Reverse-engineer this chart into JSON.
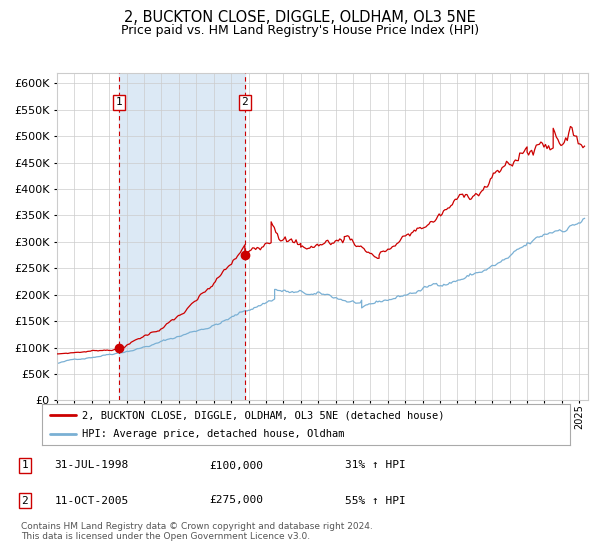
{
  "title": "2, BUCKTON CLOSE, DIGGLE, OLDHAM, OL3 5NE",
  "subtitle": "Price paid vs. HM Land Registry's House Price Index (HPI)",
  "title_fontsize": 10.5,
  "subtitle_fontsize": 9,
  "background_color": "#ffffff",
  "plot_bg_color": "#ffffff",
  "shade_color": "#dce9f5",
  "grid_color": "#cccccc",
  "red_line_color": "#cc0000",
  "blue_line_color": "#7ab0d4",
  "sale1_date": 1998.58,
  "sale1_price": 100000,
  "sale2_date": 2005.79,
  "sale2_price": 275000,
  "sale1_label": "31-JUL-1998",
  "sale2_label": "11-OCT-2005",
  "sale1_pct": "31% ↑ HPI",
  "sale2_pct": "55% ↑ HPI",
  "legend_line1": "2, BUCKTON CLOSE, DIGGLE, OLDHAM, OL3 5NE (detached house)",
  "legend_line2": "HPI: Average price, detached house, Oldham",
  "footnote": "Contains HM Land Registry data © Crown copyright and database right 2024.\nThis data is licensed under the Open Government Licence v3.0.",
  "xmin": 1995.0,
  "xmax": 2025.5,
  "ymin": 0,
  "ymax": 620000,
  "yticks": [
    0,
    50000,
    100000,
    150000,
    200000,
    250000,
    300000,
    350000,
    400000,
    450000,
    500000,
    550000,
    600000
  ]
}
